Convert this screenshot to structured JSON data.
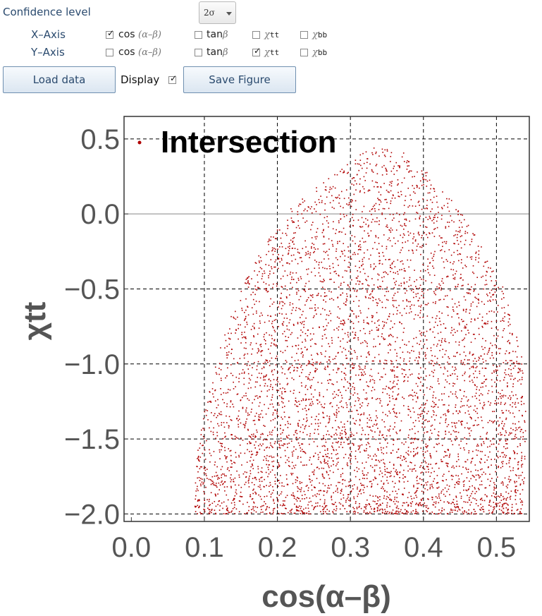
{
  "controls": {
    "confidence_label": "Confidence level",
    "confidence_value": "2σ",
    "x_axis_label": "X–Axis",
    "y_axis_label": "Y–Axis",
    "options": [
      "cos",
      "(α–β)",
      "tan",
      "β",
      "χ",
      "tt",
      "bb"
    ],
    "x_checked": [
      "cos(α–β)"
    ],
    "y_checked": [
      "χtt"
    ],
    "load_button": "Load data",
    "display_label": "Display",
    "display_checked": true,
    "save_button": "Save Figure",
    "check_mark": "✓"
  },
  "chart_data": {
    "type": "scatter",
    "legend": "Intersection",
    "legend_position": "top-left",
    "xlabel": "cos(α–β)",
    "ylabel": "χtt",
    "xlim": [
      -0.01,
      0.545
    ],
    "ylim": [
      -2.05,
      0.65
    ],
    "xticks": [
      "0.0",
      "0.1",
      "0.2",
      "0.3",
      "0.4",
      "0.5"
    ],
    "xtick_values": [
      0.0,
      0.1,
      0.2,
      0.3,
      0.4,
      0.5
    ],
    "yticks": [
      "0.5",
      "0.0",
      "−0.5",
      "−1.0",
      "−1.5",
      "−2.0"
    ],
    "ytick_values": [
      0.5,
      0.0,
      -0.5,
      -1.0,
      -1.5,
      -2.0
    ],
    "grid": true,
    "point_color": "#b00000",
    "region_outline": [
      [
        0.085,
        -2.0
      ],
      [
        0.09,
        -1.6
      ],
      [
        0.1,
        -1.3
      ],
      [
        0.115,
        -1.0
      ],
      [
        0.135,
        -0.7
      ],
      [
        0.16,
        -0.4
      ],
      [
        0.19,
        -0.15
      ],
      [
        0.22,
        0.05
      ],
      [
        0.26,
        0.2
      ],
      [
        0.3,
        0.35
      ],
      [
        0.33,
        0.45
      ],
      [
        0.37,
        0.42
      ],
      [
        0.4,
        0.3
      ],
      [
        0.43,
        0.15
      ],
      [
        0.46,
        -0.05
      ],
      [
        0.49,
        -0.3
      ],
      [
        0.52,
        -0.6
      ],
      [
        0.535,
        -0.9
      ],
      [
        0.54,
        -1.3
      ],
      [
        0.54,
        -1.7
      ],
      [
        0.535,
        -2.0
      ]
    ]
  }
}
